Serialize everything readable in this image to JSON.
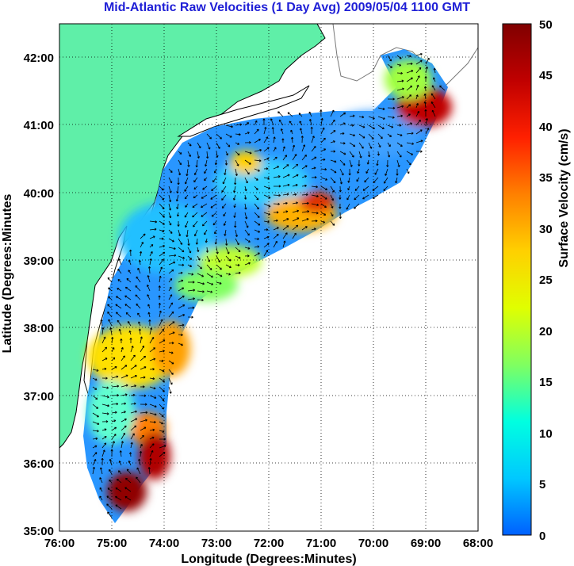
{
  "title": "Mid-Atlantic Raw Velocities (1 Day Avg) 2009/05/04 1100 GMT",
  "map": {
    "xlabel": "Longitude (Degrees:Minutes)",
    "ylabel": "Latitude (Degrees:Minutes",
    "x_ticks": [
      "76:00",
      "75:00",
      "74:00",
      "73:00",
      "72:00",
      "71:00",
      "70:00",
      "69:00",
      "68:00"
    ],
    "y_ticks": [
      "42:00",
      "41:00",
      "40:00",
      "39:00",
      "38:00",
      "37:00",
      "36:00",
      "35:00"
    ],
    "lon_range": [
      -76,
      -68
    ],
    "lat_range": [
      35,
      42.5
    ],
    "land_color": "#5fefa8",
    "grid": "dotted"
  },
  "colorbar": {
    "label": "Surface Velocity (cm/s)",
    "ticks": [
      "50",
      "45",
      "40",
      "35",
      "30",
      "25",
      "20",
      "15",
      "10",
      "5",
      "0"
    ],
    "range": [
      0,
      50
    ],
    "colors": [
      "#0060ff",
      "#00c8ff",
      "#00ffe0",
      "#80ff60",
      "#e0ff00",
      "#ffd000",
      "#ff8000",
      "#ff2000",
      "#c00000",
      "#800000"
    ]
  }
}
